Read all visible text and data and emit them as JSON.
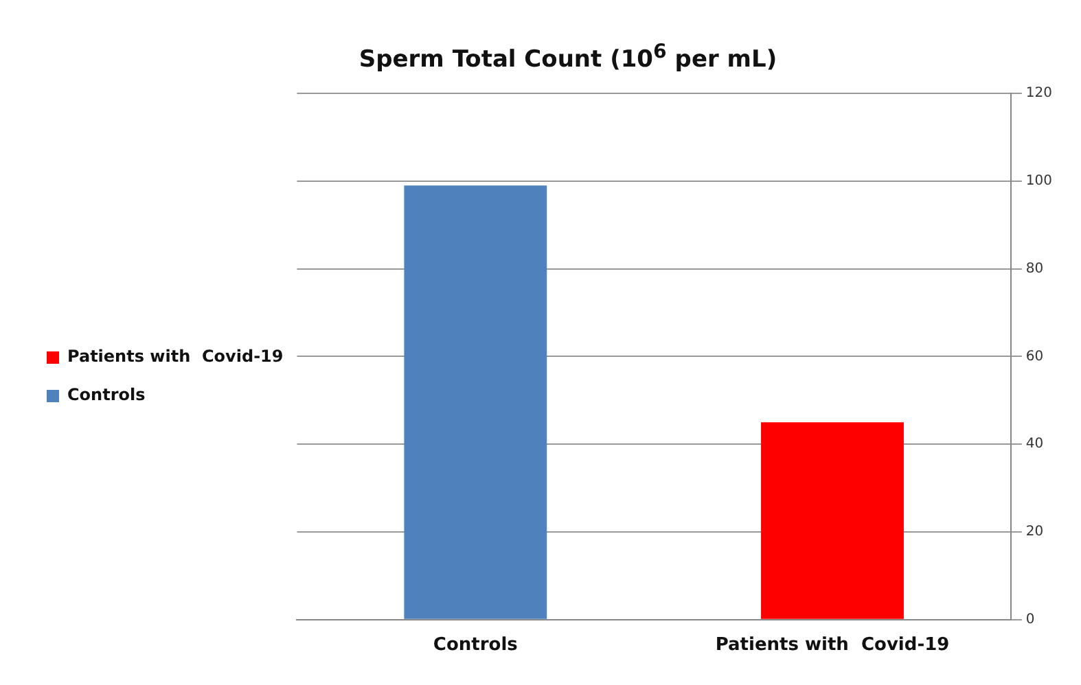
{
  "chart_data": {
    "type": "bar",
    "title": "Sperm Total Count (10$^{6}$ per mL)",
    "categories": [
      "Controls",
      "Patients with  Covid-19"
    ],
    "series": [
      {
        "name": "Controls",
        "color": "#4f81bd",
        "values": [
          99,
          null
        ]
      },
      {
        "name": "Patients with  Covid-19",
        "color": "#ff0000",
        "values": [
          null,
          45
        ]
      }
    ],
    "ylim": [
      0,
      120
    ],
    "yticks": [
      0,
      20,
      40,
      60,
      80,
      100,
      120
    ],
    "grid": "y",
    "legend": "left"
  }
}
